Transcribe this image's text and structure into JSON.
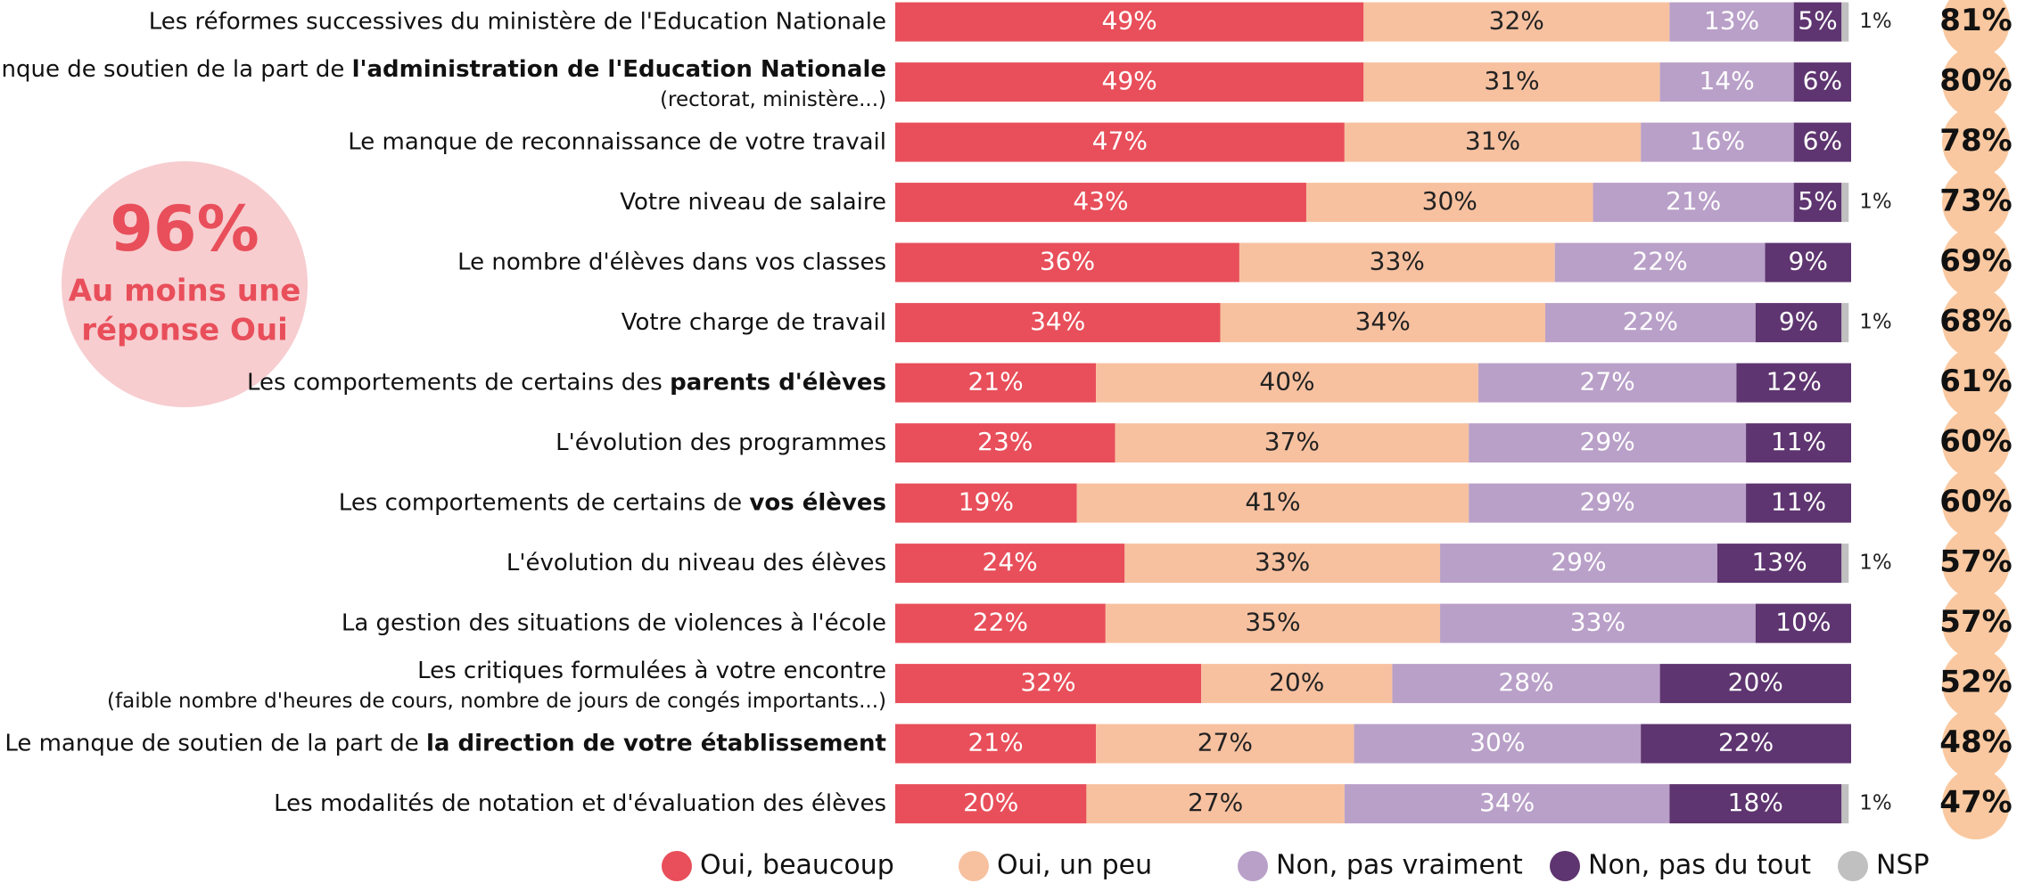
{
  "chart_data": {
    "type": "stacked-bar-horizontal",
    "xlim": [
      0,
      100
    ],
    "categories": [
      [
        [
          "Les réformes successives du ministère de l'Education Nationale"
        ]
      ],
      [
        [
          "Le manque de soutien de la part de ",
          "l'administration de l'Education Nationale"
        ],
        [
          "(rectorat, ministère...)"
        ]
      ],
      [
        [
          "Le manque de reconnaissance de votre travail"
        ]
      ],
      [
        [
          "Votre niveau de salaire"
        ]
      ],
      [
        [
          "Le nombre d'élèves dans vos classes"
        ]
      ],
      [
        [
          "Votre charge de travail"
        ]
      ],
      [
        [
          "Les comportements de certains des ",
          "parents d'élèves"
        ]
      ],
      [
        [
          "L'évolution des programmes"
        ]
      ],
      [
        [
          "Les comportements de certains de ",
          "vos élèves"
        ]
      ],
      [
        [
          "L'évolution du niveau des élèves"
        ]
      ],
      [
        [
          "La gestion des situations de violences à l'école"
        ]
      ],
      [
        [
          "Les critiques formulées à votre encontre"
        ],
        [
          "(faible nombre d'heures de cours, nombre de jours de congés importants...)"
        ]
      ],
      [
        [
          "Le manque de soutien de la part de ",
          "la direction de votre établissement"
        ]
      ],
      [
        [
          "Les modalités de notation et d'évaluation des élèves"
        ]
      ]
    ],
    "series": [
      {
        "name": "Oui, beaucoup",
        "color": "#e84f5a",
        "label_color": "#ffffff",
        "values": [
          49,
          49,
          47,
          43,
          36,
          34,
          21,
          23,
          19,
          24,
          22,
          32,
          21,
          20
        ],
        "value_labels": [
          "49%",
          "49%",
          "47%",
          "43%",
          "36%",
          "34%",
          "21%",
          "23%",
          "19%",
          "24%",
          "22%",
          "32%",
          "21%",
          "20%"
        ]
      },
      {
        "name": "Oui, un peu",
        "color": "#f7c1a0",
        "label_color": "#222222",
        "values": [
          32,
          31,
          31,
          30,
          33,
          34,
          40,
          37,
          41,
          33,
          35,
          20,
          27,
          27
        ],
        "value_labels": [
          "32%",
          "31%",
          "31%",
          "30%",
          "33%",
          "34%",
          "40%",
          "37%",
          "41%",
          "33%",
          "35%",
          "20%",
          "27%",
          "27%"
        ]
      },
      {
        "name": "Non, pas vraiment",
        "color": "#b9a0c8",
        "label_color": "#ffffff",
        "values": [
          13,
          14,
          16,
          21,
          22,
          22,
          27,
          29,
          29,
          29,
          33,
          28,
          30,
          34
        ],
        "value_labels": [
          "13%",
          "14%",
          "16%",
          "21%",
          "22%",
          "22%",
          "27%",
          "29%",
          "29%",
          "29%",
          "33%",
          "28%",
          "30%",
          "34%"
        ]
      },
      {
        "name": "Non, pas du tout",
        "color": "#5e3570",
        "label_color": "#ffffff",
        "values": [
          5,
          6,
          6,
          5,
          9,
          9,
          12,
          11,
          11,
          13,
          10,
          20,
          22,
          18
        ],
        "value_labels": [
          "5%",
          "6%",
          "6%",
          "5%",
          "9%",
          "9%",
          "12%",
          "11%",
          "11%",
          "13%",
          "10%",
          "20%",
          "22%",
          "18%"
        ]
      },
      {
        "name": "NSP",
        "color": "#c0c0c0",
        "label_color": "#222222",
        "outside": true,
        "values": [
          1,
          null,
          null,
          1,
          null,
          1,
          null,
          null,
          null,
          1,
          null,
          null,
          null,
          1
        ],
        "value_labels": [
          "1%",
          null,
          null,
          "1%",
          null,
          "1%",
          null,
          null,
          null,
          "1%",
          null,
          null,
          null,
          "1%"
        ]
      }
    ],
    "totals": {
      "values": [
        81,
        80,
        78,
        73,
        69,
        68,
        61,
        60,
        60,
        57,
        57,
        52,
        48,
        47
      ],
      "value_labels": [
        "81%",
        "80%",
        "78%",
        "73%",
        "69%",
        "68%",
        "61%",
        "60%",
        "60%",
        "57%",
        "57%",
        "52%",
        "48%",
        "47%"
      ]
    },
    "badge": {
      "value_label": "96%",
      "text": [
        "Au moins une",
        "réponse Oui"
      ]
    }
  }
}
